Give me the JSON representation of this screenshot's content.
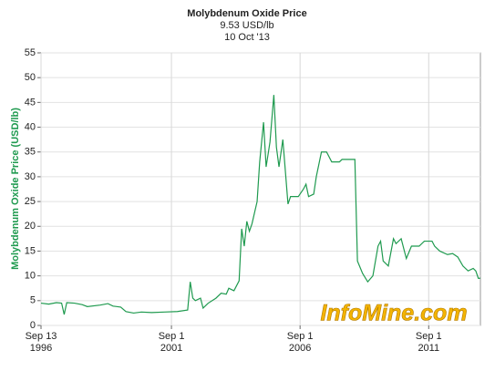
{
  "chart_data": {
    "type": "line",
    "title": "Molybdenum Oxide Price",
    "subtitle": "9.53 USD/lb",
    "date": "10 Oct '13",
    "ylabel": "Molybdenum Oxide Price (USD/lb)",
    "watermark": "InfoMine.com",
    "grid": true,
    "xlim": [
      1996.7,
      2013.78
    ],
    "ylim": [
      0,
      55
    ],
    "yticks": [
      0,
      5,
      10,
      15,
      20,
      25,
      30,
      35,
      40,
      45,
      50,
      55
    ],
    "xticks": [
      {
        "value": 1996.7,
        "label": [
          "Sep 13",
          "1996"
        ]
      },
      {
        "value": 2001.77,
        "label": [
          "Sep 1",
          "2001"
        ]
      },
      {
        "value": 2006.77,
        "label": [
          "Sep 1",
          "2006"
        ]
      },
      {
        "value": 2011.77,
        "label": [
          "Sep 1",
          "2011"
        ]
      }
    ],
    "x": [
      1996.7,
      1997.0,
      1997.3,
      1997.5,
      1997.6,
      1997.7,
      1998.0,
      1998.3,
      1998.5,
      1999.0,
      1999.3,
      1999.5,
      1999.8,
      2000.0,
      2000.3,
      2000.6,
      2001.0,
      2001.5,
      2002.0,
      2002.4,
      2002.5,
      2002.6,
      2002.7,
      2002.9,
      2003.0,
      2003.2,
      2003.5,
      2003.7,
      2003.9,
      2004.0,
      2004.2,
      2004.4,
      2004.5,
      2004.6,
      2004.7,
      2004.8,
      2004.9,
      2005.1,
      2005.2,
      2005.35,
      2005.45,
      2005.6,
      2005.75,
      2005.85,
      2005.95,
      2006.1,
      2006.2,
      2006.3,
      2006.4,
      2006.7,
      2006.9,
      2007.0,
      2007.1,
      2007.3,
      2007.4,
      2007.6,
      2007.8,
      2008.0,
      2008.3,
      2008.4,
      2008.9,
      2009.0,
      2009.2,
      2009.4,
      2009.6,
      2009.8,
      2009.9,
      2010.0,
      2010.2,
      2010.4,
      2010.5,
      2010.7,
      2010.9,
      2011.1,
      2011.4,
      2011.6,
      2011.9,
      2012.0,
      2012.2,
      2012.5,
      2012.7,
      2012.9,
      2013.1,
      2013.3,
      2013.5,
      2013.6,
      2013.7,
      2013.78
    ],
    "series": [
      {
        "name": "Molybdenum Oxide Price",
        "color": "#1f9a4f",
        "values": [
          4.5,
          4.3,
          4.6,
          4.5,
          2.2,
          4.6,
          4.5,
          4.2,
          3.8,
          4.1,
          4.4,
          3.9,
          3.7,
          2.8,
          2.5,
          2.7,
          2.6,
          2.7,
          2.8,
          3.1,
          8.8,
          5.5,
          5.0,
          5.5,
          3.5,
          4.5,
          5.5,
          6.5,
          6.3,
          7.5,
          7.0,
          9.0,
          19.5,
          16.0,
          21.0,
          19.0,
          20.5,
          25,
          33,
          41,
          32,
          37,
          46.5,
          36,
          32,
          37.5,
          31,
          24.5,
          26,
          26,
          27.5,
          28.5,
          26,
          26.5,
          30,
          35,
          35,
          33,
          33,
          33.5,
          33.5,
          13,
          10.5,
          8.8,
          10,
          16,
          17,
          13,
          12,
          17.5,
          16.5,
          17.5,
          13.5,
          16,
          16,
          17,
          17,
          16,
          15,
          14.3,
          14.5,
          13.8,
          12,
          11,
          11.5,
          11,
          9.5,
          9.53
        ]
      }
    ]
  }
}
